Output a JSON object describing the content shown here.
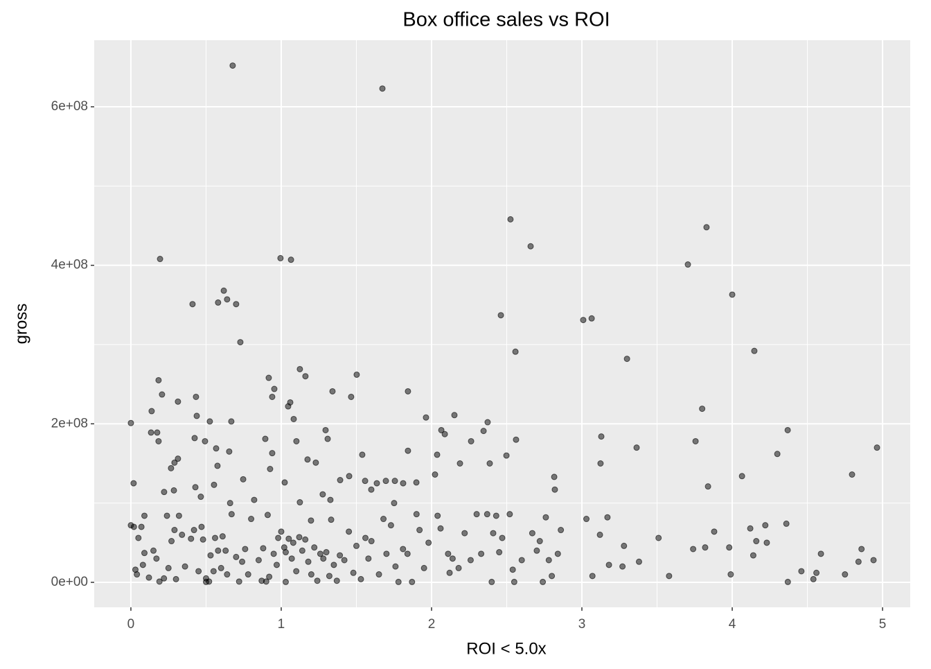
{
  "chart_data": {
    "type": "scatter",
    "title": "Box office sales vs ROI",
    "x_label": "ROI < 5.0x",
    "y_label": "gross",
    "color": "#000000",
    "alpha": 0.5,
    "grid": true,
    "xlim": [
      -0.244,
      5.184
    ],
    "ylim": [
      -31500000.0,
      684000000.0
    ],
    "xticks": [
      0,
      1,
      2,
      3,
      4,
      5
    ],
    "yticks": [
      {
        "value": 0,
        "label": "0e+00"
      },
      {
        "value": 200000000,
        "label": "2e+08"
      },
      {
        "value": 400000000,
        "label": "4e+08"
      },
      {
        "value": 600000000,
        "label": "6e+08"
      }
    ],
    "x": [
      0.677,
      1.673,
      2.525,
      2.659,
      3.829,
      3.705,
      0.194,
      0.995,
      1.065,
      0.41,
      0.618,
      0.64,
      0.58,
      0.7,
      0.728,
      2.461,
      2.558,
      3.009,
      3.065,
      3.3,
      4.0,
      4.147,
      3.8,
      3.756,
      3.364,
      3.129,
      3.124,
      4.369,
      4.3,
      4.065,
      4.797,
      4.963,
      3.839,
      2.816,
      2.82,
      1.963,
      2.152,
      2.065,
      2.088,
      2.263,
      2.373,
      2.346,
      2.562,
      2.498,
      2.387,
      2.189,
      2.037,
      2.023,
      1.843,
      1.843,
      1.502,
      1.465,
      1.341,
      1.539,
      1.124,
      1.161,
      0.917,
      0.954,
      0.94,
      1.06,
      1.046,
      1.083,
      0.184,
      0.207,
      0.313,
      0.433,
      0.438,
      0.525,
      0.668,
      0,
      0.138,
      0.134,
      0.175,
      0.184,
      0.424,
      0.493,
      0.567,
      0.654,
      0.29,
      0.313,
      0.267,
      0.018,
      0.221,
      0.286,
      0.429,
      0.465,
      0.553,
      0.576,
      0.747,
      0.894,
      0.94,
      0.926,
      1.023,
      1.101,
      1.175,
      1.23,
      1.295,
      1.309,
      1.392,
      1.327,
      1.452,
      1.558,
      1.636,
      1.696,
      1.756,
      1.811,
      1.899,
      1.751,
      1.599,
      1.124,
      1.198,
      1.332,
      1.276,
      0.0,
      0.02,
      0.07,
      0.09,
      0.05,
      0.09,
      0.03,
      0.04,
      0.08,
      0.12,
      0.15,
      0.17,
      0.19,
      0.22,
      0.24,
      0.25,
      0.27,
      0.29,
      0.3,
      0.32,
      0.34,
      0.36,
      0.4,
      0.42,
      0.45,
      0.47,
      0.48,
      0.5,
      0.5,
      0.52,
      0.53,
      0.55,
      0.56,
      0.58,
      0.6,
      0.61,
      0.63,
      0.64,
      0.66,
      0.67,
      0.7,
      0.72,
      0.74,
      0.76,
      0.78,
      0.8,
      0.82,
      0.85,
      0.87,
      0.88,
      0.9,
      0.91,
      0.92,
      0.95,
      0.97,
      0.98,
      1.0,
      1.02,
      1.03,
      1.05,
      1.07,
      1.08,
      1.1,
      1.12,
      1.14,
      1.16,
      1.18,
      1.2,
      1.22,
      1.24,
      1.26,
      1.28,
      1.3,
      1.32,
      1.35,
      1.37,
      1.39,
      1.42,
      1.45,
      1.48,
      1.5,
      1.53,
      1.56,
      1.58,
      1.6,
      1.65,
      1.68,
      1.7,
      1.73,
      1.76,
      1.78,
      1.81,
      1.84,
      1.87,
      1.9,
      1.92,
      1.95,
      1.98,
      2.04,
      2.06,
      2.11,
      2.12,
      2.14,
      2.18,
      2.22,
      2.26,
      2.3,
      2.33,
      2.37,
      2.4,
      2.41,
      2.43,
      2.45,
      2.47,
      2.52,
      2.54,
      2.55,
      2.6,
      2.67,
      2.7,
      2.72,
      2.74,
      2.76,
      2.78,
      2.8,
      2.84,
      2.86,
      3.03,
      3.07,
      3.12,
      3.17,
      3.18,
      3.27,
      3.28,
      3.38,
      3.51,
      3.58,
      3.74,
      3.82,
      3.88,
      3.98,
      3.99,
      4.12,
      4.14,
      4.16,
      4.22,
      4.23,
      4.36,
      4.37,
      4.46,
      4.54,
      4.56,
      4.59,
      4.75,
      4.84,
      4.86,
      4.94,
      1.03
    ],
    "values": [
      652000000.0,
      623000000.0,
      458000000.0,
      424000000.0,
      448000000.0,
      401000000.0,
      408000000.0,
      409000000.0,
      407000000.0,
      351000000.0,
      368000000.0,
      357000000.0,
      353000000.0,
      351000000.0,
      303000000.0,
      337000000.0,
      291000000.0,
      331000000.0,
      333000000.0,
      282000000.0,
      363000000.0,
      292000000.0,
      219000000.0,
      178000000.0,
      170000000.0,
      184000000.0,
      150000000.0,
      192000000.0,
      162000000.0,
      134000000.0,
      136000000.0,
      170000000.0,
      121000000.0,
      133000000.0,
      117000000.0,
      208000000.0,
      211000000.0,
      192000000.0,
      187000000.0,
      178000000.0,
      202000000.0,
      191000000.0,
      180000000.0,
      160000000.0,
      150000000.0,
      150000000.0,
      161000000.0,
      136000000.0,
      241000000.0,
      166000000.0,
      262000000.0,
      234000000.0,
      241000000.0,
      161000000.0,
      269000000.0,
      260000000.0,
      258000000.0,
      244000000.0,
      234000000.0,
      227000000.0,
      222000000.0,
      206000000.0,
      255000000.0,
      237000000.0,
      228000000.0,
      234000000.0,
      210000000.0,
      203000000.0,
      203000000.0,
      201000000.0,
      216000000.0,
      189000000.0,
      189000000.0,
      178000000.0,
      182000000.0,
      178000000.0,
      169000000.0,
      165000000.0,
      151000000.0,
      156000000.0,
      144000000.0,
      125000000.0,
      114000000.0,
      116000000.0,
      120000000.0,
      108000000.0,
      123000000.0,
      147000000.0,
      130000000.0,
      181000000.0,
      163000000.0,
      143000000.0,
      126000000.0,
      178000000.0,
      155000000.0,
      151000000.0,
      192000000.0,
      181000000.0,
      129000000.0,
      104000000.0,
      134000000.0,
      128000000.0,
      125000000.0,
      128000000.0,
      128000000.0,
      125000000.0,
      126000000.0,
      100000000.0,
      117000000.0,
      101000000.0,
      78000000.0,
      79000000.0,
      111000000.0,
      72000000.0,
      70000000.0,
      70000000.0,
      84000000.0,
      56000000.0,
      37000000.0,
      16000000.0,
      10000000.0,
      22000000.0,
      6000000.0,
      40000000.0,
      30000000.0,
      1000000.0,
      5000000.0,
      84000000.0,
      18000000.0,
      52000000.0,
      66000000.0,
      4000000.0,
      84000000.0,
      60000000.0,
      20000000.0,
      55000000.0,
      66000000.0,
      14000000.0,
      70000000.0,
      54000000.0,
      5000000.0,
      500000.0,
      1000000.0,
      34000000.0,
      14000000.0,
      56000000.0,
      40000000.0,
      18000000.0,
      58000000.0,
      40000000.0,
      10000000.0,
      100000000.0,
      86000000.0,
      32000000.0,
      1000000.0,
      26000000.0,
      42000000.0,
      10000000.0,
      80000000.0,
      104000000.0,
      28000000.0,
      2000000.0,
      43000000.0,
      1000000.0,
      85000000.0,
      7000000.0,
      36000000.0,
      22000000.0,
      56000000.0,
      64000000.0,
      44000000.0,
      500000.0,
      55000000.0,
      30000000.0,
      50000000.0,
      14000000.0,
      57000000.0,
      40000000.0,
      54000000.0,
      26000000.0,
      10000000.0,
      44000000.0,
      2000000.0,
      36000000.0,
      30000000.0,
      38000000.0,
      8000000.0,
      22000000.0,
      2000000.0,
      34000000.0,
      28000000.0,
      64000000.0,
      12000000.0,
      46000000.0,
      4000000.0,
      56000000.0,
      30000000.0,
      52000000.0,
      10000000.0,
      80000000.0,
      36000000.0,
      72000000.0,
      20000000.0,
      500000.0,
      42000000.0,
      36000000.0,
      500000.0,
      86000000.0,
      66000000.0,
      18000000.0,
      50000000.0,
      84000000.0,
      68000000.0,
      36000000.0,
      12000000.0,
      30000000.0,
      18000000.0,
      62000000.0,
      28000000.0,
      86000000.0,
      36000000.0,
      86000000.0,
      500000.0,
      62000000.0,
      84000000.0,
      38000000.0,
      56000000.0,
      86000000.0,
      16000000.0,
      500000.0,
      28000000.0,
      62000000.0,
      40000000.0,
      52000000.0,
      500000.0,
      82000000.0,
      28000000.0,
      8000000.0,
      36000000.0,
      66000000.0,
      80000000.0,
      8000000.0,
      60000000.0,
      82000000.0,
      22000000.0,
      20000000.0,
      46000000.0,
      26000000.0,
      56000000.0,
      8000000.0,
      42000000.0,
      44000000.0,
      64000000.0,
      44000000.0,
      10000000.0,
      68000000.0,
      34000000.0,
      52000000.0,
      72000000.0,
      50000000.0,
      74000000.0,
      500000.0,
      14000000.0,
      4000000.0,
      12000000.0,
      36000000.0,
      10000000.0,
      26000000.0,
      42000000.0,
      28000000.0,
      38000000.0
    ]
  }
}
